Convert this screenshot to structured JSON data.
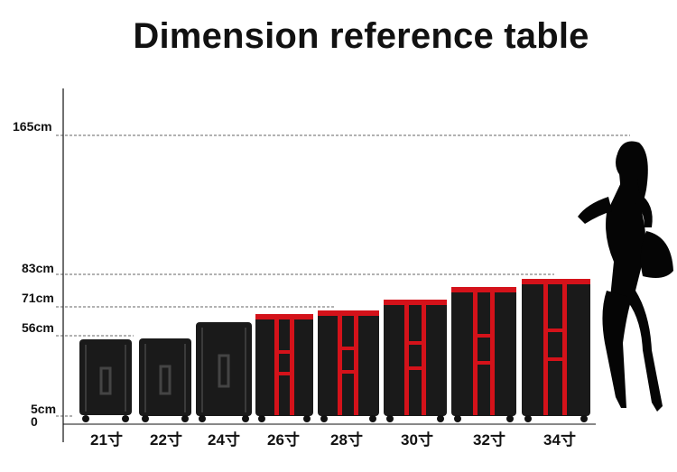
{
  "title": "Dimension reference table",
  "axis_marks": [
    "165cm",
    "83cm",
    "71cm",
    "56cm",
    "5cm",
    "0"
  ],
  "suitcase_sizes": [
    "21寸",
    "22寸",
    "24寸",
    "26寸",
    "28寸",
    "30寸",
    "32寸",
    "34寸"
  ],
  "colors": {
    "suitcase_body": "#1a1a1a",
    "frame_accent": "#d4121a",
    "silhouette": "#050505"
  }
}
